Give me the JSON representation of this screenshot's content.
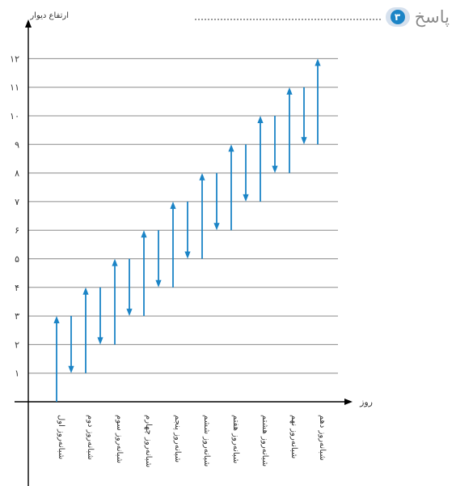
{
  "header": {
    "answer_word": "پاسخ",
    "number": "۳"
  },
  "colors": {
    "accent": "#1b84c6",
    "grid": "#8c8c8c",
    "axis": "#000000"
  },
  "chart_data": {
    "type": "line",
    "ylabel": "ارتفاع دیوار",
    "xlabel": "روز",
    "ylim": [
      0,
      12
    ],
    "ytick_labels": [
      "۱",
      "۲",
      "۳",
      "۴",
      "۵",
      "۶",
      "۷",
      "۸",
      "۹",
      "۱۰",
      "۱۱",
      "۱۲"
    ],
    "categories": [
      "شبانه‌روز اول",
      "شبانه‌روز دوم",
      "شبانه‌روز سوم",
      "شبانه‌روز چهارم",
      "شبانه‌روز پنجم",
      "شبانه‌روز ششم",
      "شبانه‌روز هفتم",
      "شبانه‌روز هشتم",
      "شبانه‌روز نهم",
      "شبانه‌روز دهم"
    ],
    "climb_up": [
      [
        0,
        3
      ],
      [
        1,
        4
      ],
      [
        2,
        5
      ],
      [
        3,
        6
      ],
      [
        4,
        7
      ],
      [
        5,
        8
      ],
      [
        6,
        9
      ],
      [
        7,
        10
      ],
      [
        8,
        11
      ],
      [
        9,
        12
      ]
    ],
    "slide_down": [
      [
        3,
        1
      ],
      [
        4,
        2
      ],
      [
        5,
        3
      ],
      [
        6,
        4
      ],
      [
        7,
        5
      ],
      [
        8,
        6
      ],
      [
        9,
        7
      ],
      [
        10,
        8
      ],
      [
        11,
        9
      ]
    ],
    "grid": true
  }
}
